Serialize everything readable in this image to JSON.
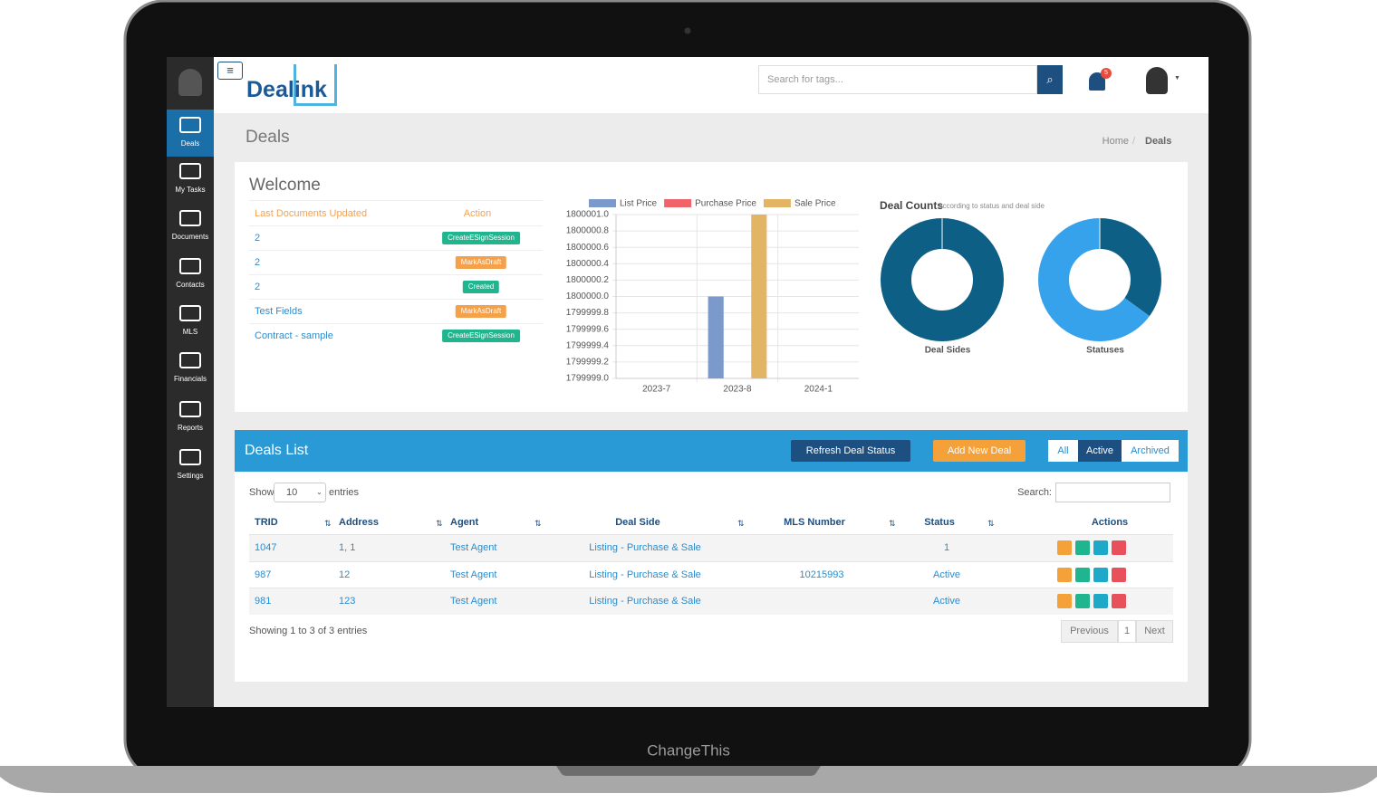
{
  "laptop": {
    "brand": "ChangeThis"
  },
  "sidebar": {
    "items": [
      "Deals",
      "My Tasks",
      "Documents",
      "Contacts",
      "MLS",
      "Financials",
      "Reports",
      "Settings"
    ]
  },
  "header": {
    "logo": "Dealink",
    "search_placeholder": "Search for tags...",
    "notifications": "5"
  },
  "page": {
    "title": "Deals",
    "breadcrumb": [
      "Home",
      "Deals"
    ]
  },
  "welcome": {
    "title": "Welcome",
    "columns": [
      "Last Documents Updated",
      "Action"
    ],
    "rows": [
      {
        "document": "2",
        "action": "CreateESignSession",
        "color": "#1fb58f"
      },
      {
        "document": "2",
        "action": "MarkAsDraft",
        "color": "#f5a04a"
      },
      {
        "document": "2",
        "action": "Created",
        "color": "#1fb58f"
      },
      {
        "document": "Test Fields",
        "action": "MarkAsDraft",
        "color": "#f5a04a"
      },
      {
        "document": "Contract - sample",
        "action": "CreateESignSession",
        "color": "#1fb58f"
      }
    ]
  },
  "deal_counts": {
    "title": "Deal Counts",
    "subtitle": "according to status and deal side"
  },
  "chart_data": [
    {
      "type": "bar",
      "categories": [
        "2023-7",
        "2023-8",
        "2024-1"
      ],
      "series": [
        {
          "name": "List Price",
          "color": "#7b9acb",
          "values": [
            null,
            1800000.0,
            null
          ]
        },
        {
          "name": "Purchase Price",
          "color": "#f0636a",
          "values": [
            null,
            null,
            null
          ]
        },
        {
          "name": "Sale Price",
          "color": "#e2b565",
          "values": [
            null,
            1800001.0,
            null
          ]
        }
      ],
      "ylim": [
        1799999.0,
        1800001.0
      ],
      "yticks": [
        {
          "value": 1799999.0,
          "label": "1799999.0"
        },
        {
          "value": 1799999.2,
          "label": "1799999.2"
        },
        {
          "value": 1799999.4,
          "label": "1799999.4"
        },
        {
          "value": 1799999.6,
          "label": "1799999.6"
        },
        {
          "value": 1799999.8,
          "label": "1799999.8"
        },
        {
          "value": 1800000.0,
          "label": "1800000.0"
        },
        {
          "value": 1800000.2,
          "label": "1800000.2"
        },
        {
          "value": 1800000.4,
          "label": "1800000.4"
        },
        {
          "value": 1800000.6,
          "label": "1800000.6"
        },
        {
          "value": 1800000.8,
          "label": "1800000.8"
        },
        {
          "value": 1800001.0,
          "label": "1800001.0"
        }
      ],
      "grid": true
    },
    {
      "type": "pie",
      "title": "Deal Sides",
      "values": [
        100
      ],
      "colors": [
        "#0e5f86"
      ]
    },
    {
      "type": "pie",
      "title": "Statuses",
      "values": [
        35,
        65
      ],
      "colors": [
        "#0e5f86",
        "#36a2eb"
      ]
    }
  ],
  "deals": {
    "title": "Deals List",
    "refresh": "Refresh Deal Status",
    "add": "Add New Deal",
    "filters": [
      "All",
      "Active",
      "Archived"
    ],
    "active_filter": 1,
    "show": "Show",
    "page_size": "10",
    "entries": "entries",
    "search": "Search:",
    "columns": [
      "TRID",
      "Address",
      "Agent",
      "Deal Side",
      "MLS Number",
      "Status",
      "Actions"
    ],
    "rows": [
      {
        "trid": "1047",
        "address": "1, 1",
        "agent": "Test Agent",
        "deal_side": "Listing - Purchase & Sale",
        "mls_number": null,
        "status": "1"
      },
      {
        "trid": "987",
        "address": "12",
        "agent": "Test Agent",
        "deal_side": "Listing - Purchase & Sale",
        "mls_number": "10215993",
        "status": "Active"
      },
      {
        "trid": "981",
        "address": "123",
        "agent": "Test Agent",
        "deal_side": "Listing - Purchase & Sale",
        "mls_number": null,
        "status": "Active"
      }
    ],
    "info": "Showing 1 to 3 of 3 entries",
    "pagination": [
      "Previous",
      "1",
      "Next"
    ]
  }
}
